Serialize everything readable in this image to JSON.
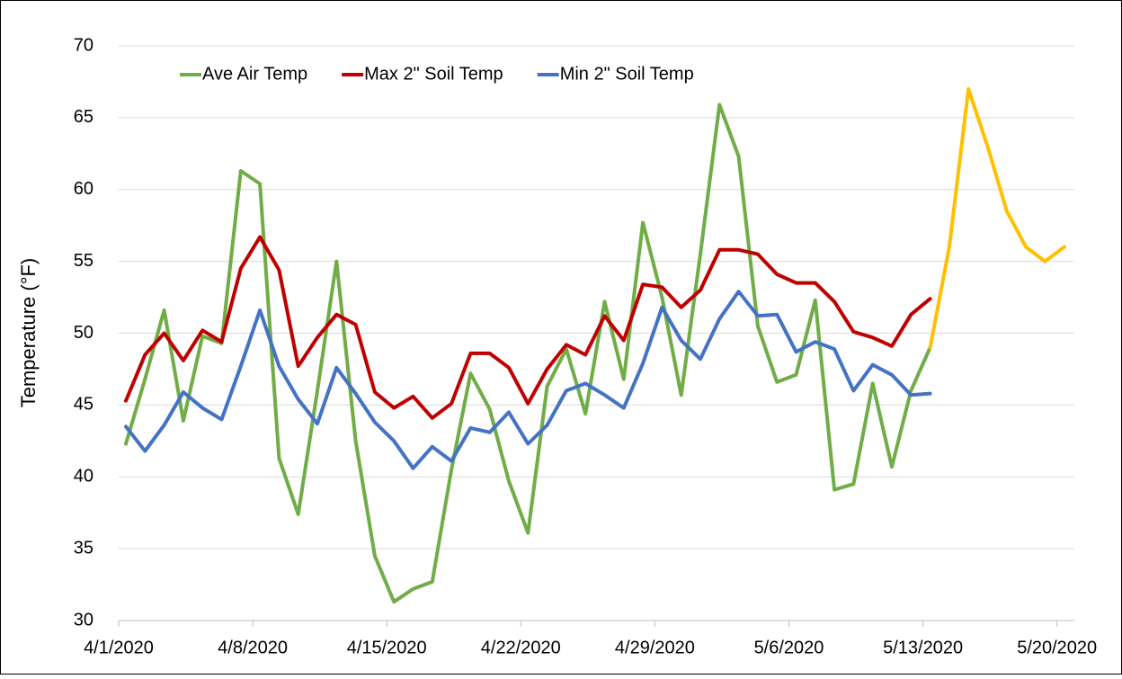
{
  "chart_data": {
    "type": "line",
    "y_label": "Temperature (°F)",
    "categories": [
      "4/1/2020",
      null,
      null,
      null,
      null,
      null,
      null,
      "4/8/2020",
      null,
      null,
      null,
      null,
      null,
      null,
      "4/15/2020",
      null,
      null,
      null,
      null,
      null,
      null,
      "4/22/2020",
      null,
      null,
      null,
      null,
      null,
      null,
      "4/29/2020",
      null,
      null,
      null,
      null,
      null,
      null,
      "5/6/2020",
      null,
      null,
      null,
      null,
      null,
      null,
      "5/13/2020",
      null,
      null,
      null,
      null,
      null,
      null,
      "5/20/2020"
    ],
    "series": [
      {
        "name": "Ave Air Temp",
        "color": "#70ad47",
        "values": [
          42.3,
          46.8,
          51.6,
          43.9,
          49.8,
          49.3,
          61.3,
          60.4,
          41.3,
          37.4,
          46.0,
          55.0,
          42.5,
          34.5,
          31.3,
          32.2,
          32.7,
          40.5,
          47.2,
          44.7,
          39.7,
          36.1,
          46.3,
          48.9,
          44.4,
          52.2,
          46.8,
          57.7,
          52.5,
          45.7,
          55.5,
          65.9,
          62.3,
          50.5,
          46.6,
          47.1,
          52.3,
          39.1,
          39.5,
          46.5,
          40.7,
          46.0,
          49.0,
          null,
          null,
          null,
          null,
          null,
          null,
          null
        ]
      },
      {
        "name": "Max 2\" Soil Temp",
        "color": "#c00000",
        "values": [
          45.3,
          48.5,
          50.0,
          48.1,
          50.2,
          49.4,
          54.5,
          56.7,
          54.4,
          47.7,
          49.7,
          51.3,
          50.6,
          45.9,
          44.8,
          45.6,
          44.1,
          45.1,
          48.6,
          48.6,
          47.6,
          45.1,
          47.5,
          49.2,
          48.5,
          51.2,
          49.5,
          53.4,
          53.2,
          51.8,
          53.0,
          55.8,
          55.8,
          55.5,
          54.1,
          53.5,
          53.5,
          52.2,
          50.1,
          49.7,
          49.1,
          51.3,
          52.4,
          null,
          null,
          null,
          null,
          null,
          null,
          null
        ]
      },
      {
        "name": "Min 2\" Soil Temp",
        "color": "#4472c4",
        "values": [
          43.5,
          41.8,
          43.6,
          45.9,
          44.8,
          44.0,
          47.7,
          51.6,
          47.7,
          45.4,
          43.7,
          47.6,
          45.8,
          43.8,
          42.5,
          40.6,
          42.1,
          41.1,
          43.4,
          43.1,
          44.5,
          42.3,
          43.6,
          46.0,
          46.5,
          45.7,
          44.8,
          47.9,
          51.8,
          49.5,
          48.2,
          51.0,
          52.9,
          51.2,
          51.3,
          48.7,
          49.4,
          48.9,
          46.0,
          47.8,
          47.1,
          45.7,
          45.8,
          null,
          null,
          null,
          null,
          null,
          null,
          null
        ]
      },
      {
        "color": "#ffc000",
        "values": [
          null,
          null,
          null,
          null,
          null,
          null,
          null,
          null,
          null,
          null,
          null,
          null,
          null,
          null,
          null,
          null,
          null,
          null,
          null,
          null,
          null,
          null,
          null,
          null,
          null,
          null,
          null,
          null,
          null,
          null,
          null,
          null,
          null,
          null,
          null,
          null,
          null,
          null,
          null,
          null,
          null,
          null,
          49.0,
          56.0,
          67.0,
          63.0,
          58.5,
          56.0,
          55.0,
          56.0
        ]
      }
    ],
    "ylim": [
      30,
      70
    ],
    "yticks": [
      30,
      35,
      40,
      45,
      50,
      55,
      60,
      65,
      70
    ],
    "grid": true,
    "legend": "top-left"
  }
}
